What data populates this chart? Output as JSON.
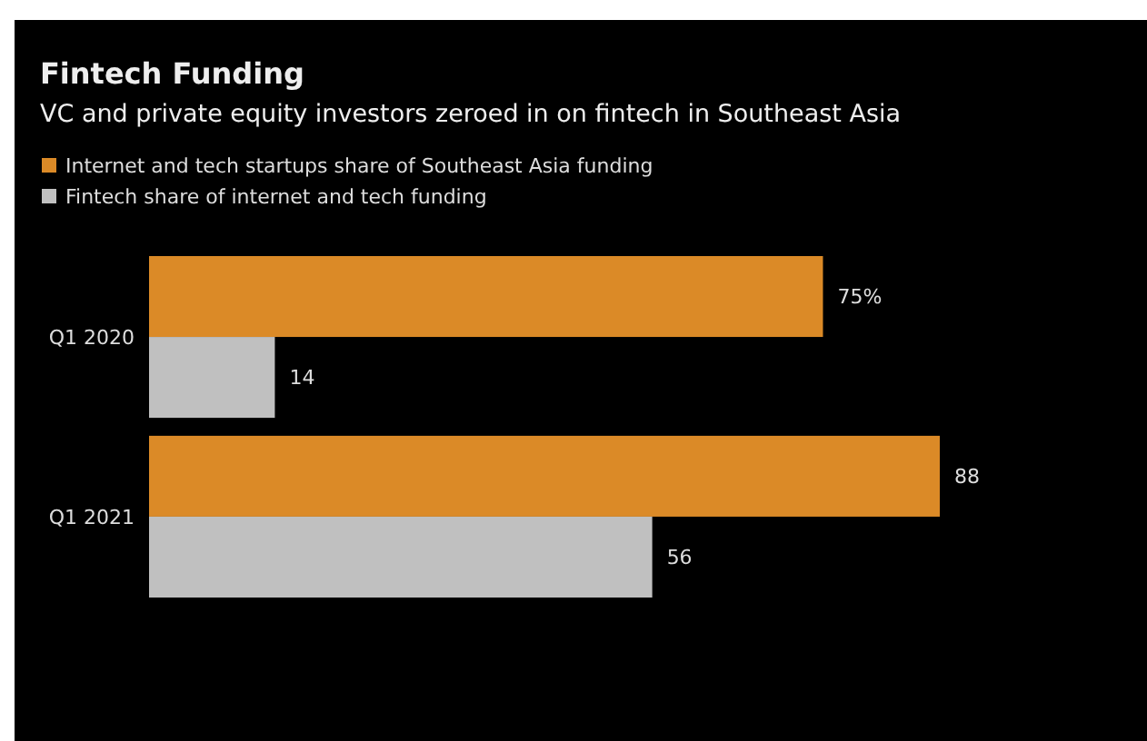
{
  "chart_data": {
    "type": "bar",
    "orientation": "horizontal",
    "title": "Fintech Funding",
    "subtitle": "VC and private equity investors zeroed in on fintech in Southeast Asia",
    "categories": [
      "Q1 2020",
      "Q1 2021"
    ],
    "series": [
      {
        "name": "Internet and tech startups share of Southeast Asia funding",
        "color": "#db8a27",
        "values": [
          75,
          88
        ],
        "value_labels": [
          "75%",
          "88"
        ]
      },
      {
        "name": "Fintech share of internet and tech funding",
        "color": "#c0c0c0",
        "values": [
          14,
          56
        ],
        "value_labels": [
          "14",
          "56"
        ]
      }
    ],
    "legend": "top left"
  }
}
